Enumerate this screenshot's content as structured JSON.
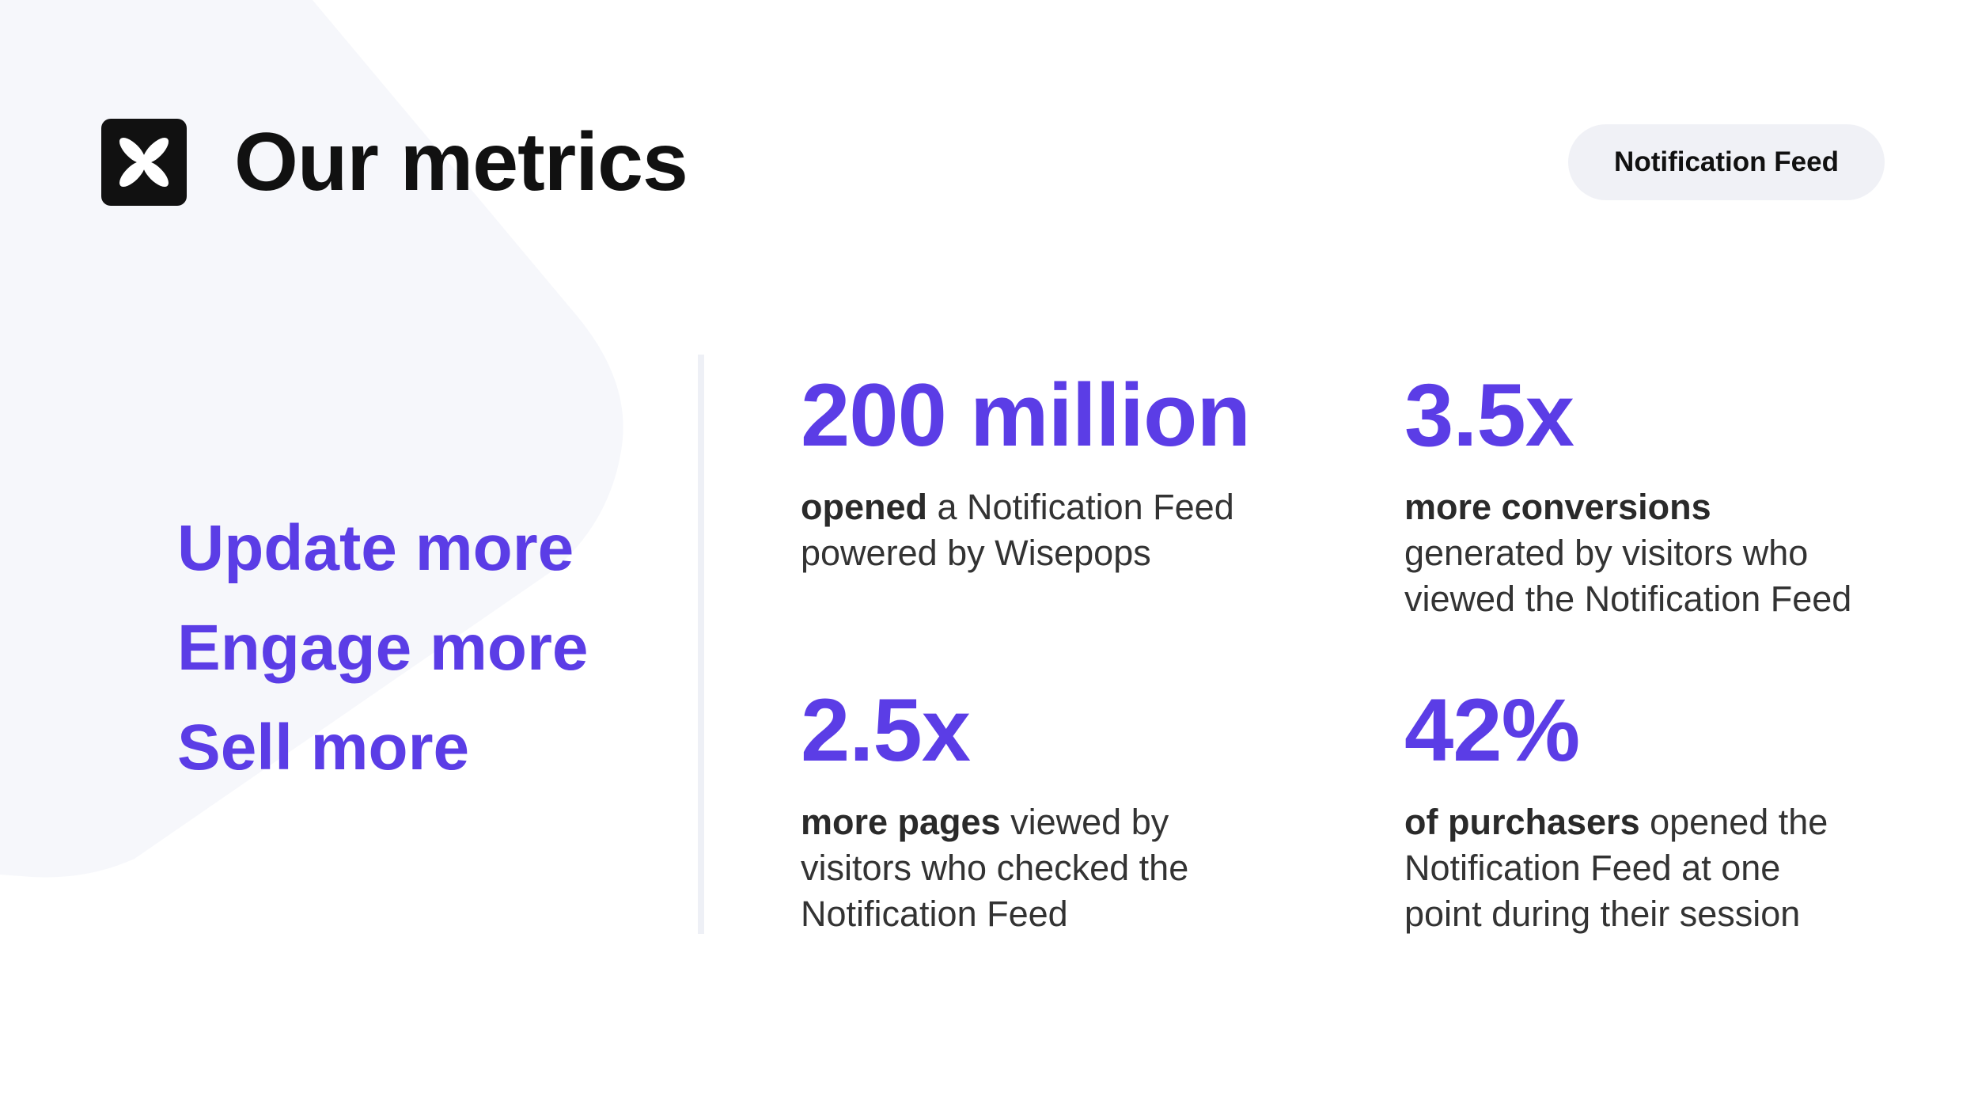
{
  "header": {
    "title": "Our metrics",
    "badge_label": "Notification Feed",
    "logo_icon": "clover-x-logo-icon"
  },
  "taglines": [
    "Update more",
    "Engage more",
    "Sell more"
  ],
  "metrics": [
    {
      "value": "200 million",
      "line1_strong": "opened",
      "line1_rest": " a Notification Feed",
      "line2": "powered by Wisepops",
      "line3": ""
    },
    {
      "value": "3.5x",
      "line1_strong": "more conversions",
      "line1_rest": "",
      "line2": "generated by visitors who",
      "line3": "viewed the Notification Feed"
    },
    {
      "value": "2.5x",
      "line1_strong": "more pages",
      "line1_rest": " viewed by",
      "line2": "visitors who checked the",
      "line3": "Notification Feed"
    },
    {
      "value": "42%",
      "line1_strong": "of purchasers",
      "line1_rest": " opened the",
      "line2": "Notification Feed at one",
      "line3": "point during their session"
    }
  ],
  "colors": {
    "accent": "#5b3de6",
    "title": "#111111",
    "body_text": "#333333",
    "pill_bg": "#f0f1f6",
    "bg_shape": "#f6f7fb"
  }
}
